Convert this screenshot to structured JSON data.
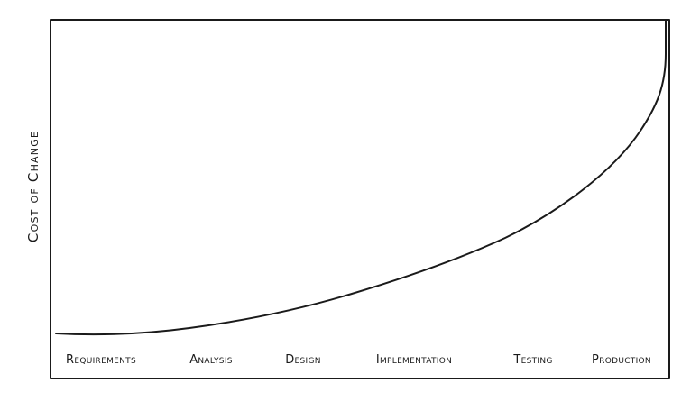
{
  "chart_data": {
    "type": "line",
    "title": "",
    "xlabel": "",
    "ylabel": "Cost of Change",
    "categories": [
      "Requirements",
      "Analysis",
      "Design",
      "Implementation",
      "Testing",
      "Production"
    ],
    "series": [
      {
        "values": [
          1,
          4,
          10,
          22,
          45,
          100
        ]
      }
    ],
    "ylim": [
      0,
      100
    ],
    "grid": false,
    "legend": "none",
    "line_color": "#1a1a1a"
  }
}
